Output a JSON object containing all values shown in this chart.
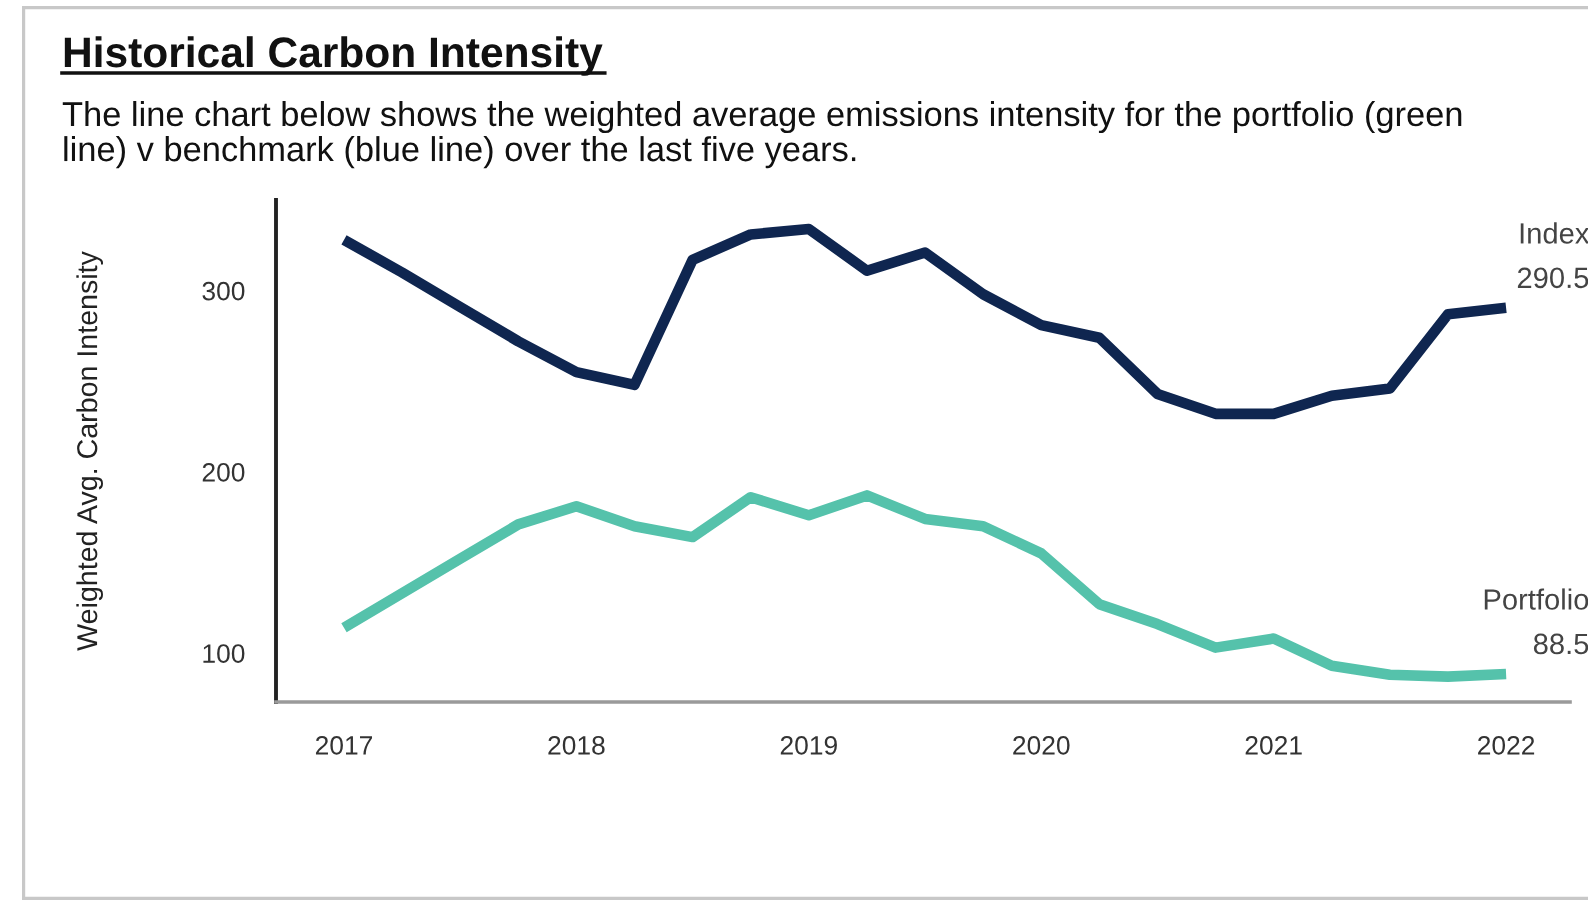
{
  "chart_data": {
    "type": "line",
    "title": "Historical Carbon Intensity",
    "subtitle": "The line chart below shows the weighted average emissions intensity for the portfolio (green line) v benchmark (blue line) over the last five years.",
    "ylabel": "Weighted Avg. Carbon Intensity",
    "categories": [
      "2017",
      null,
      null,
      null,
      "2018",
      null,
      null,
      null,
      "2019",
      null,
      null,
      null,
      "2020",
      null,
      null,
      null,
      "2021",
      null,
      null,
      null,
      "2022"
    ],
    "series": [
      {
        "name": "Index",
        "color": "#0f2650",
        "values": [
          328,
          310,
          291,
          272,
          255,
          248,
          317,
          331,
          334,
          311,
          321,
          298,
          281,
          274,
          243,
          232,
          232,
          242,
          246,
          287,
          290.5
        ],
        "value_labels": [
          null,
          null,
          null,
          null,
          null,
          null,
          null,
          null,
          null,
          null,
          null,
          null,
          null,
          null,
          null,
          null,
          null,
          null,
          null,
          null,
          "290.5"
        ]
      },
      {
        "name": "Portfolio",
        "color": "#55c2ab",
        "values": [
          114,
          133,
          152,
          171,
          181,
          170,
          164,
          186,
          176,
          187,
          174,
          170,
          155,
          127,
          116,
          103,
          108,
          93,
          88,
          87,
          88.5
        ],
        "value_labels": [
          null,
          null,
          null,
          null,
          null,
          null,
          null,
          null,
          null,
          null,
          null,
          null,
          null,
          null,
          null,
          null,
          null,
          null,
          null,
          null,
          "88.5"
        ]
      }
    ],
    "ylim": [
      73,
      350
    ],
    "yticks": [
      100,
      200,
      300
    ],
    "line_style": "solid"
  }
}
